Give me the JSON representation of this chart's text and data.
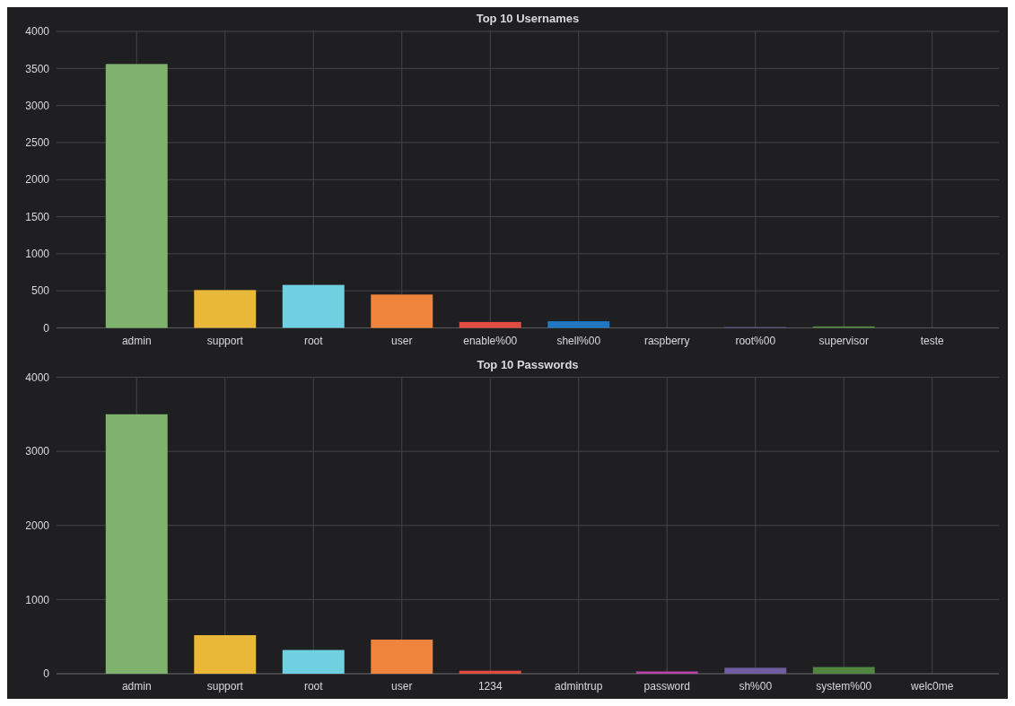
{
  "chart_data": [
    {
      "type": "bar",
      "title": "Top 10 Usernames",
      "categories": [
        "admin",
        "support",
        "root",
        "user",
        "enable%00",
        "shell%00",
        "raspberry",
        "root%00",
        "supervisor",
        "teste"
      ],
      "values": [
        3560,
        510,
        580,
        450,
        80,
        90,
        0,
        10,
        20,
        0
      ],
      "colors": [
        "#7eb26d",
        "#eab839",
        "#6ed0e0",
        "#ef843c",
        "#e24d42",
        "#1f78c1",
        "#ba43a9",
        "#705da0",
        "#508642",
        "#cca300"
      ],
      "ylim": [
        0,
        4000
      ],
      "yticks": [
        0,
        500,
        1000,
        1500,
        2000,
        2500,
        3000,
        3500,
        4000
      ],
      "grid": true
    },
    {
      "type": "bar",
      "title": "Top 10 Passwords",
      "categories": [
        "admin",
        "support",
        "root",
        "user",
        "1234",
        "admintrup",
        "password",
        "sh%00",
        "system%00",
        "welc0me"
      ],
      "values": [
        3500,
        520,
        320,
        460,
        40,
        0,
        30,
        80,
        90,
        0
      ],
      "colors": [
        "#7eb26d",
        "#eab839",
        "#6ed0e0",
        "#ef843c",
        "#e24d42",
        "#1f78c1",
        "#ba43a9",
        "#705da0",
        "#508642",
        "#cca300"
      ],
      "ylim": [
        0,
        4000
      ],
      "yticks": [
        0,
        1000,
        2000,
        3000,
        4000
      ],
      "grid": true
    }
  ]
}
